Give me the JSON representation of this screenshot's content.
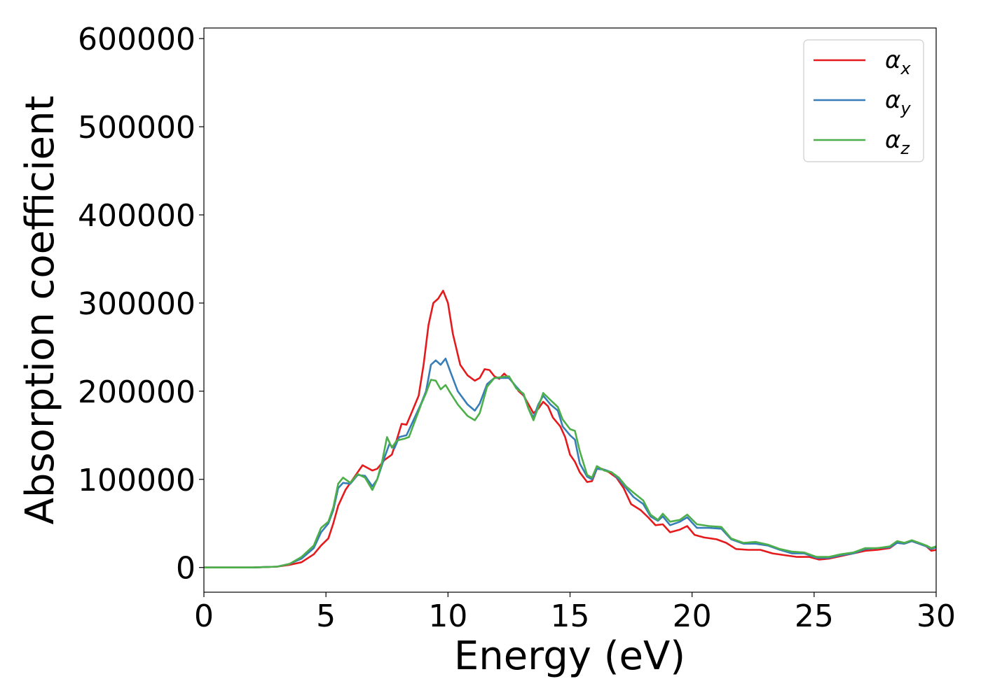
{
  "chart_data": {
    "type": "line",
    "title": "",
    "xlabel": "Energy (eV)",
    "ylabel": "Absorption coefficient",
    "xlim": [
      0,
      30
    ],
    "ylim": [
      -28000,
      612000
    ],
    "x_ticks": [
      "0",
      "5",
      "10",
      "15",
      "20",
      "25",
      "30"
    ],
    "x_tick_values": [
      0,
      5,
      10,
      15,
      20,
      25,
      30
    ],
    "y_ticks": [
      "0",
      "100000",
      "200000",
      "300000",
      "400000",
      "500000",
      "600000"
    ],
    "y_tick_values": [
      0,
      100000,
      200000,
      300000,
      400000,
      500000,
      600000
    ],
    "grid": false,
    "legend_position": "top-right",
    "series": [
      {
        "name": "αx",
        "symbol": "α",
        "subscript": "x",
        "color": "#e41a1c",
        "points": [
          [
            0,
            0
          ],
          [
            2,
            0
          ],
          [
            3,
            1000
          ],
          [
            3.5,
            3000
          ],
          [
            4,
            6000
          ],
          [
            4.5,
            15000
          ],
          [
            4.8,
            25000
          ],
          [
            5.1,
            33000
          ],
          [
            5.3,
            50000
          ],
          [
            5.5,
            70000
          ],
          [
            5.8,
            88000
          ],
          [
            6.1,
            100000
          ],
          [
            6.3,
            108000
          ],
          [
            6.5,
            116000
          ],
          [
            6.7,
            113000
          ],
          [
            6.9,
            110000
          ],
          [
            7.1,
            112000
          ],
          [
            7.4,
            122000
          ],
          [
            7.7,
            128000
          ],
          [
            7.9,
            145000
          ],
          [
            8.1,
            163000
          ],
          [
            8.3,
            162000
          ],
          [
            8.5,
            175000
          ],
          [
            8.8,
            195000
          ],
          [
            9.0,
            230000
          ],
          [
            9.2,
            275000
          ],
          [
            9.4,
            300000
          ],
          [
            9.6,
            305000
          ],
          [
            9.8,
            314000
          ],
          [
            10.0,
            300000
          ],
          [
            10.2,
            265000
          ],
          [
            10.5,
            230000
          ],
          [
            10.8,
            218000
          ],
          [
            11.1,
            212000
          ],
          [
            11.3,
            215000
          ],
          [
            11.5,
            225000
          ],
          [
            11.7,
            224000
          ],
          [
            11.9,
            217000
          ],
          [
            12.1,
            214000
          ],
          [
            12.3,
            220000
          ],
          [
            12.6,
            212000
          ],
          [
            12.9,
            200000
          ],
          [
            13.1,
            195000
          ],
          [
            13.3,
            185000
          ],
          [
            13.5,
            175000
          ],
          [
            13.7,
            180000
          ],
          [
            13.9,
            188000
          ],
          [
            14.1,
            183000
          ],
          [
            14.3,
            170000
          ],
          [
            14.6,
            160000
          ],
          [
            14.8,
            148000
          ],
          [
            15.0,
            128000
          ],
          [
            15.2,
            120000
          ],
          [
            15.4,
            108000
          ],
          [
            15.7,
            97000
          ],
          [
            15.9,
            98000
          ],
          [
            16.1,
            112000
          ],
          [
            16.3,
            112000
          ],
          [
            16.6,
            108000
          ],
          [
            16.9,
            102000
          ],
          [
            17.2,
            90000
          ],
          [
            17.5,
            72000
          ],
          [
            17.9,
            65000
          ],
          [
            18.2,
            57000
          ],
          [
            18.5,
            48000
          ],
          [
            18.8,
            49000
          ],
          [
            19.1,
            40000
          ],
          [
            19.5,
            43000
          ],
          [
            19.8,
            47000
          ],
          [
            20.1,
            37000
          ],
          [
            20.5,
            34000
          ],
          [
            21.0,
            32000
          ],
          [
            21.4,
            28000
          ],
          [
            21.8,
            21000
          ],
          [
            22.3,
            20000
          ],
          [
            22.8,
            20000
          ],
          [
            23.3,
            16000
          ],
          [
            23.8,
            14000
          ],
          [
            24.3,
            12000
          ],
          [
            24.8,
            12000
          ],
          [
            25.2,
            9000
          ],
          [
            25.6,
            10000
          ],
          [
            26.1,
            13000
          ],
          [
            26.6,
            16000
          ],
          [
            27.1,
            19000
          ],
          [
            27.6,
            20000
          ],
          [
            28.1,
            22000
          ],
          [
            28.4,
            28000
          ],
          [
            28.7,
            27000
          ],
          [
            29.0,
            30000
          ],
          [
            29.3,
            27000
          ],
          [
            29.6,
            24000
          ],
          [
            29.8,
            19000
          ],
          [
            30,
            20000
          ]
        ]
      },
      {
        "name": "αy",
        "symbol": "α",
        "subscript": "y",
        "color": "#377eb8",
        "points": [
          [
            0,
            0
          ],
          [
            2,
            0
          ],
          [
            3,
            1000
          ],
          [
            3.5,
            4000
          ],
          [
            4,
            10000
          ],
          [
            4.5,
            22000
          ],
          [
            4.8,
            40000
          ],
          [
            5.1,
            50000
          ],
          [
            5.3,
            65000
          ],
          [
            5.5,
            90000
          ],
          [
            5.7,
            96000
          ],
          [
            6.0,
            95000
          ],
          [
            6.3,
            105000
          ],
          [
            6.6,
            104000
          ],
          [
            6.9,
            92000
          ],
          [
            7.1,
            100000
          ],
          [
            7.4,
            125000
          ],
          [
            7.6,
            140000
          ],
          [
            7.8,
            135000
          ],
          [
            8.0,
            148000
          ],
          [
            8.3,
            150000
          ],
          [
            8.6,
            168000
          ],
          [
            8.9,
            186000
          ],
          [
            9.1,
            200000
          ],
          [
            9.3,
            230000
          ],
          [
            9.5,
            235000
          ],
          [
            9.7,
            230000
          ],
          [
            9.9,
            237000
          ],
          [
            10.1,
            222000
          ],
          [
            10.4,
            200000
          ],
          [
            10.8,
            185000
          ],
          [
            11.1,
            178000
          ],
          [
            11.3,
            186000
          ],
          [
            11.6,
            208000
          ],
          [
            11.9,
            215000
          ],
          [
            12.2,
            215000
          ],
          [
            12.5,
            215000
          ],
          [
            12.8,
            205000
          ],
          [
            13.1,
            196000
          ],
          [
            13.3,
            180000
          ],
          [
            13.5,
            170000
          ],
          [
            13.7,
            185000
          ],
          [
            13.9,
            195000
          ],
          [
            14.2,
            185000
          ],
          [
            14.5,
            178000
          ],
          [
            14.7,
            160000
          ],
          [
            15.0,
            150000
          ],
          [
            15.2,
            145000
          ],
          [
            15.4,
            118000
          ],
          [
            15.7,
            103000
          ],
          [
            15.9,
            100000
          ],
          [
            16.1,
            112000
          ],
          [
            16.4,
            111000
          ],
          [
            16.7,
            108000
          ],
          [
            17.0,
            100000
          ],
          [
            17.3,
            90000
          ],
          [
            17.6,
            80000
          ],
          [
            18.0,
            72000
          ],
          [
            18.3,
            58000
          ],
          [
            18.6,
            53000
          ],
          [
            18.8,
            58000
          ],
          [
            19.1,
            48000
          ],
          [
            19.5,
            52000
          ],
          [
            19.8,
            57000
          ],
          [
            20.2,
            45000
          ],
          [
            20.7,
            45000
          ],
          [
            21.2,
            44000
          ],
          [
            21.6,
            32000
          ],
          [
            22.1,
            27000
          ],
          [
            22.6,
            27000
          ],
          [
            23.1,
            25000
          ],
          [
            23.6,
            20000
          ],
          [
            24.1,
            16000
          ],
          [
            24.6,
            16000
          ],
          [
            25.1,
            11000
          ],
          [
            25.6,
            11000
          ],
          [
            26.1,
            14000
          ],
          [
            26.6,
            16000
          ],
          [
            27.1,
            21000
          ],
          [
            27.6,
            22000
          ],
          [
            28.1,
            23000
          ],
          [
            28.4,
            28000
          ],
          [
            28.7,
            27000
          ],
          [
            29.0,
            30000
          ],
          [
            29.3,
            27000
          ],
          [
            29.6,
            24000
          ],
          [
            29.8,
            21000
          ],
          [
            30,
            23000
          ]
        ]
      },
      {
        "name": "αz",
        "symbol": "α",
        "subscript": "z",
        "color": "#4daf4a",
        "points": [
          [
            0,
            0
          ],
          [
            2,
            0
          ],
          [
            3,
            1000
          ],
          [
            3.5,
            4000
          ],
          [
            4,
            12000
          ],
          [
            4.5,
            25000
          ],
          [
            4.8,
            45000
          ],
          [
            5.1,
            52000
          ],
          [
            5.3,
            68000
          ],
          [
            5.5,
            95000
          ],
          [
            5.7,
            102000
          ],
          [
            6.0,
            96000
          ],
          [
            6.3,
            106000
          ],
          [
            6.6,
            102000
          ],
          [
            6.9,
            88000
          ],
          [
            7.1,
            100000
          ],
          [
            7.3,
            120000
          ],
          [
            7.5,
            148000
          ],
          [
            7.7,
            136000
          ],
          [
            7.9,
            144000
          ],
          [
            8.2,
            146000
          ],
          [
            8.4,
            148000
          ],
          [
            8.7,
            170000
          ],
          [
            8.9,
            185000
          ],
          [
            9.1,
            198000
          ],
          [
            9.3,
            213000
          ],
          [
            9.5,
            212000
          ],
          [
            9.7,
            202000
          ],
          [
            9.9,
            207000
          ],
          [
            10.1,
            198000
          ],
          [
            10.4,
            185000
          ],
          [
            10.8,
            172000
          ],
          [
            11.1,
            167000
          ],
          [
            11.3,
            175000
          ],
          [
            11.6,
            205000
          ],
          [
            11.9,
            215000
          ],
          [
            12.2,
            216000
          ],
          [
            12.5,
            217000
          ],
          [
            12.8,
            203000
          ],
          [
            13.1,
            197000
          ],
          [
            13.3,
            180000
          ],
          [
            13.5,
            167000
          ],
          [
            13.7,
            182000
          ],
          [
            13.9,
            198000
          ],
          [
            14.2,
            190000
          ],
          [
            14.5,
            182000
          ],
          [
            14.7,
            168000
          ],
          [
            15.0,
            157000
          ],
          [
            15.2,
            155000
          ],
          [
            15.4,
            132000
          ],
          [
            15.7,
            105000
          ],
          [
            15.9,
            102000
          ],
          [
            16.1,
            115000
          ],
          [
            16.4,
            110000
          ],
          [
            16.7,
            108000
          ],
          [
            17.0,
            102000
          ],
          [
            17.3,
            92000
          ],
          [
            17.6,
            85000
          ],
          [
            18.0,
            76000
          ],
          [
            18.3,
            60000
          ],
          [
            18.6,
            54000
          ],
          [
            18.8,
            61000
          ],
          [
            19.1,
            52000
          ],
          [
            19.5,
            54000
          ],
          [
            19.8,
            60000
          ],
          [
            20.2,
            49000
          ],
          [
            20.7,
            47000
          ],
          [
            21.2,
            46000
          ],
          [
            21.6,
            33000
          ],
          [
            22.1,
            28000
          ],
          [
            22.6,
            29000
          ],
          [
            23.1,
            26000
          ],
          [
            23.6,
            21000
          ],
          [
            24.1,
            18000
          ],
          [
            24.6,
            17000
          ],
          [
            25.1,
            12000
          ],
          [
            25.6,
            12000
          ],
          [
            26.1,
            15000
          ],
          [
            26.6,
            17000
          ],
          [
            27.1,
            22000
          ],
          [
            27.6,
            22000
          ],
          [
            28.1,
            24000
          ],
          [
            28.4,
            30000
          ],
          [
            28.7,
            28000
          ],
          [
            29.0,
            31000
          ],
          [
            29.3,
            28000
          ],
          [
            29.6,
            25000
          ],
          [
            29.8,
            22000
          ],
          [
            30,
            24000
          ]
        ]
      }
    ]
  }
}
